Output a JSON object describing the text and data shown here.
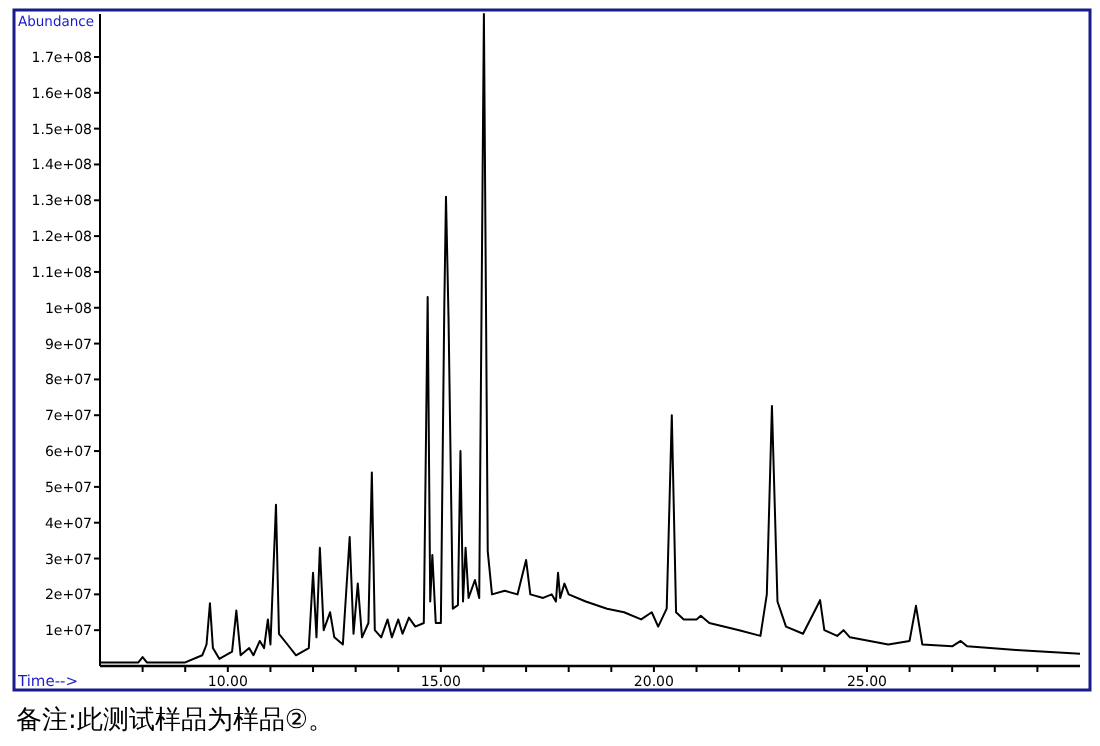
{
  "chart_data": {
    "type": "line",
    "xlabel": "Time-->",
    "ylabel": "Abundance",
    "annotations": [
      "备注:此测试样品为样品②。"
    ],
    "xlim": [
      7,
      30
    ],
    "ylim": [
      0,
      182000000.0
    ],
    "xticks": [
      {
        "value": 8,
        "label": null
      },
      {
        "value": 9,
        "label": null
      },
      {
        "value": 10,
        "label": "10.00"
      },
      {
        "value": 11,
        "label": null
      },
      {
        "value": 12,
        "label": null
      },
      {
        "value": 13,
        "label": null
      },
      {
        "value": 14,
        "label": null
      },
      {
        "value": 15,
        "label": "15.00"
      },
      {
        "value": 16,
        "label": null
      },
      {
        "value": 17,
        "label": null
      },
      {
        "value": 18,
        "label": null
      },
      {
        "value": 19,
        "label": null
      },
      {
        "value": 20,
        "label": "20.00"
      },
      {
        "value": 21,
        "label": null
      },
      {
        "value": 22,
        "label": null
      },
      {
        "value": 23,
        "label": null
      },
      {
        "value": 24,
        "label": null
      },
      {
        "value": 25,
        "label": "25.00"
      },
      {
        "value": 26,
        "label": null
      },
      {
        "value": 27,
        "label": null
      },
      {
        "value": 28,
        "label": null
      },
      {
        "value": 29,
        "label": null
      }
    ],
    "yticks": [
      {
        "value": 10000000.0,
        "label": "1e+07"
      },
      {
        "value": 20000000.0,
        "label": "2e+07"
      },
      {
        "value": 30000000.0,
        "label": "3e+07"
      },
      {
        "value": 40000000.0,
        "label": "4e+07"
      },
      {
        "value": 50000000.0,
        "label": "5e+07"
      },
      {
        "value": 60000000.0,
        "label": "6e+07"
      },
      {
        "value": 70000000.0,
        "label": "7e+07"
      },
      {
        "value": 80000000.0,
        "label": "8e+07"
      },
      {
        "value": 90000000.0,
        "label": "9e+07"
      },
      {
        "value": 100000000.0,
        "label": "1e+08"
      },
      {
        "value": 110000000.0,
        "label": "1.1e+08"
      },
      {
        "value": 120000000.0,
        "label": "1.2e+08"
      },
      {
        "value": 130000000.0,
        "label": "1.3e+08"
      },
      {
        "value": 140000000.0,
        "label": "1.4e+08"
      },
      {
        "value": 150000000.0,
        "label": "1.5e+08"
      },
      {
        "value": 160000000.0,
        "label": "1.6e+08"
      },
      {
        "value": 170000000.0,
        "label": "1.7e+08"
      }
    ],
    "series": [
      {
        "color": "#000000",
        "x": [
          7.0,
          7.9,
          8.0,
          8.1,
          9.0,
          9.4,
          9.5,
          9.58,
          9.65,
          9.8,
          10.1,
          10.2,
          10.3,
          10.5,
          10.6,
          10.75,
          10.85,
          10.94,
          11.0,
          11.13,
          11.2,
          11.4,
          11.6,
          11.9,
          12.0,
          12.08,
          12.16,
          12.25,
          12.4,
          12.5,
          12.7,
          12.86,
          12.95,
          13.05,
          13.15,
          13.3,
          13.38,
          13.45,
          13.6,
          13.75,
          13.85,
          14.0,
          14.1,
          14.25,
          14.4,
          14.6,
          14.69,
          14.75,
          14.8,
          14.88,
          15.0,
          15.08,
          15.12,
          15.18,
          15.28,
          15.4,
          15.46,
          15.52,
          15.58,
          15.65,
          15.8,
          15.9,
          16.01,
          16.1,
          16.2,
          16.5,
          16.8,
          17.0,
          17.1,
          17.4,
          17.6,
          17.7,
          17.75,
          17.8,
          17.9,
          18.0,
          18.4,
          18.9,
          19.3,
          19.7,
          19.95,
          20.1,
          20.3,
          20.42,
          20.52,
          20.7,
          21.0,
          21.1,
          21.3,
          22.0,
          22.5,
          22.65,
          22.77,
          22.9,
          23.1,
          23.5,
          23.8,
          23.9,
          24.0,
          24.3,
          24.45,
          24.6,
          25.5,
          26.0,
          26.15,
          26.3,
          27.0,
          27.2,
          27.35,
          28.5,
          30.0
        ],
        "values": [
          1000000.0,
          1000000.0,
          2500000.0,
          1000000.0,
          1000000.0,
          3000000.0,
          6000000.0,
          17500000.0,
          5000000.0,
          2000000.0,
          4000000.0,
          15500000.0,
          3000000.0,
          5000000.0,
          3000000.0,
          7000000.0,
          5000000.0,
          13000000.0,
          6000000.0,
          45000000.0,
          9000000.0,
          6000000.0,
          3000000.0,
          5000000.0,
          26000000.0,
          8000000.0,
          33000000.0,
          10000000.0,
          15000000.0,
          8000000.0,
          6000000.0,
          36000000.0,
          9000000.0,
          23000000.0,
          8000000.0,
          12000000.0,
          54000000.0,
          10000000.0,
          8000000.0,
          13000000.0,
          8000000.0,
          13000000.0,
          9000000.0,
          13500000.0,
          11000000.0,
          12000000.0,
          103000000.0,
          18000000.0,
          31000000.0,
          12000000.0,
          12000000.0,
          100000000.0,
          131000000.0,
          97000000.0,
          16000000.0,
          17000000.0,
          60000000.0,
          18000000.0,
          33000000.0,
          19000000.0,
          24000000.0,
          19000000.0,
          182000000.0,
          32000000.0,
          20000000.0,
          21000000.0,
          20000000.0,
          29600000.0,
          20000000.0,
          19000000.0,
          20000000.0,
          18000000.0,
          26000000.0,
          19000000.0,
          23000000.0,
          20000000.0,
          18000000.0,
          16000000.0,
          15000000.0,
          13000000.0,
          15000000.0,
          11000000.0,
          16000000.0,
          70000000.0,
          15000000.0,
          13000000.0,
          13000000.0,
          14000000.0,
          12000000.0,
          10000000.0,
          8400000.0,
          20000000.0,
          72600000.0,
          18000000.0,
          11000000.0,
          9000000.0,
          16000000.0,
          18400000.0,
          10000000.0,
          8400000.0,
          10000000.0,
          8000000.0,
          6000000.0,
          7000000.0,
          16800000.0,
          6000000.0,
          5500000.0,
          7000000.0,
          5500000.0,
          4500000.0,
          3400000.0
        ]
      }
    ]
  }
}
